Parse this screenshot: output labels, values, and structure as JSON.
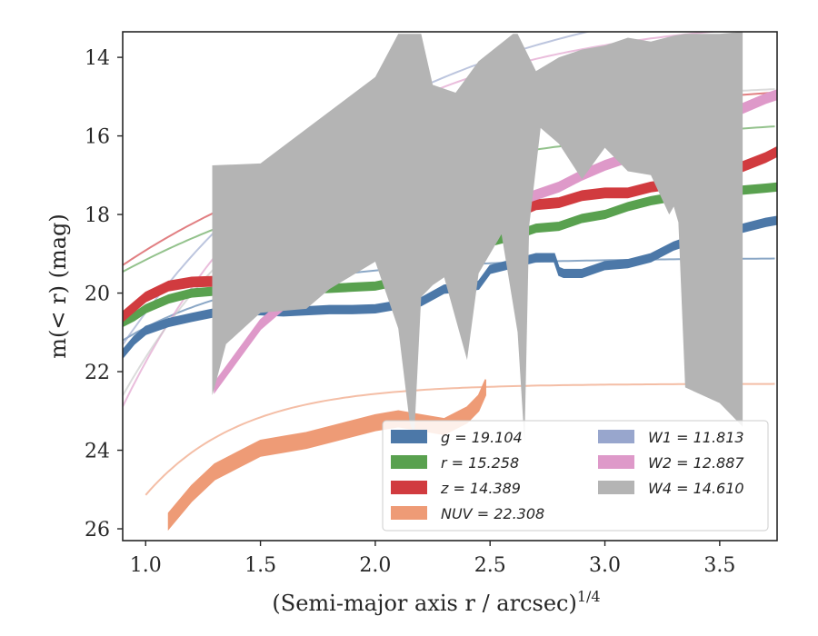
{
  "chart_data": {
    "type": "line",
    "xlabel": "(Semi-major axis r / arcsec)",
    "xlabel_sup": "1/4",
    "ylabel": "m(< r) (mag)",
    "xlim": [
      0.9,
      3.75
    ],
    "ylim": [
      26.3,
      13.35
    ],
    "y_inverted": true,
    "xticks": [
      1.0,
      1.5,
      2.0,
      2.5,
      3.0,
      3.5
    ],
    "xtick_labels": [
      "1.0",
      "1.5",
      "2.0",
      "2.5",
      "3.0",
      "3.5"
    ],
    "yticks": [
      14,
      16,
      18,
      20,
      22,
      24,
      26
    ],
    "ytick_labels": [
      "14",
      "16",
      "18",
      "20",
      "22",
      "24",
      "26"
    ],
    "legend_position": "lower-right",
    "legend_columns": 2,
    "series": [
      {
        "name": "g = 19.104",
        "color": "#4c78a8",
        "kind": "band",
        "x": [
          0.9,
          0.95,
          1.0,
          1.1,
          1.2,
          1.3,
          1.4,
          1.5,
          1.6,
          1.7,
          1.8,
          1.9,
          2.0,
          2.1,
          2.2,
          2.3,
          2.4,
          2.45,
          2.5,
          2.6,
          2.7,
          2.78,
          2.8,
          2.82,
          2.9,
          3.0,
          3.1,
          3.2,
          3.3,
          3.4,
          3.5,
          3.6,
          3.7,
          3.75
        ],
        "y": [
          21.55,
          21.2,
          20.95,
          20.75,
          20.62,
          20.5,
          20.45,
          20.45,
          20.48,
          20.45,
          20.42,
          20.42,
          20.4,
          20.3,
          20.22,
          19.9,
          19.85,
          19.8,
          19.4,
          19.25,
          19.1,
          19.1,
          19.45,
          19.5,
          19.5,
          19.3,
          19.25,
          19.1,
          18.8,
          18.6,
          18.5,
          18.35,
          18.2,
          18.15
        ],
        "band_half_width": 0.1
      },
      {
        "name": "r = 15.258",
        "color": "#59a14f",
        "kind": "band",
        "x": [
          0.9,
          0.95,
          1.0,
          1.1,
          1.2,
          1.3,
          1.4,
          1.5,
          1.6,
          1.7,
          1.8,
          1.9,
          2.0,
          2.1,
          2.2,
          2.3,
          2.4,
          2.45,
          2.5,
          2.6,
          2.7,
          2.8,
          2.9,
          3.0,
          3.1,
          3.2,
          3.3,
          3.4,
          3.5,
          3.6,
          3.7,
          3.75
        ],
        "y": [
          20.75,
          20.6,
          20.4,
          20.15,
          20.0,
          19.95,
          19.95,
          19.95,
          19.95,
          19.9,
          19.88,
          19.85,
          19.82,
          19.7,
          19.55,
          19.2,
          19.05,
          18.95,
          18.7,
          18.55,
          18.35,
          18.3,
          18.1,
          18.0,
          17.8,
          17.65,
          17.55,
          17.45,
          17.42,
          17.38,
          17.33,
          17.3
        ],
        "band_half_width": 0.1
      },
      {
        "name": "z = 14.389",
        "color": "#d13b3f",
        "kind": "band",
        "x": [
          0.9,
          0.95,
          1.0,
          1.1,
          1.2,
          1.3,
          1.4,
          1.5,
          1.6,
          1.7,
          1.8,
          1.9,
          2.0,
          2.1,
          2.2,
          2.3,
          2.4,
          2.5,
          2.6,
          2.7,
          2.8,
          2.9,
          3.0,
          3.1,
          3.2,
          3.3,
          3.4,
          3.5,
          3.6,
          3.7,
          3.75
        ],
        "y": [
          20.6,
          20.35,
          20.1,
          19.82,
          19.72,
          19.7,
          19.6,
          19.55,
          19.58,
          19.55,
          19.45,
          19.3,
          19.05,
          18.75,
          18.55,
          18.2,
          18.1,
          18.0,
          18.0,
          17.75,
          17.7,
          17.52,
          17.45,
          17.45,
          17.3,
          17.22,
          17.0,
          16.98,
          16.78,
          16.55,
          16.4
        ],
        "band_half_width": 0.12
      },
      {
        "name": "NUV = 22.308",
        "color": "#ee9b76",
        "kind": "band",
        "x": [
          1.1,
          1.2,
          1.3,
          1.4,
          1.5,
          1.6,
          1.7,
          1.8,
          1.9,
          2.0,
          2.1,
          2.2,
          2.3,
          2.4,
          2.45,
          2.48
        ],
        "y": [
          25.8,
          25.1,
          24.55,
          24.25,
          23.95,
          23.85,
          23.75,
          23.6,
          23.45,
          23.3,
          23.2,
          23.3,
          23.4,
          23.1,
          22.8,
          22.4
        ],
        "band_half_width": 0.2
      },
      {
        "name": "W1 = 11.813",
        "color": "#98a6cd",
        "kind": "band",
        "x": [
          1.4,
          1.5,
          1.6,
          1.7,
          1.8,
          1.9,
          2.0,
          2.1,
          2.2,
          2.3,
          2.4,
          2.5
        ],
        "y": [
          20.4,
          20.1,
          19.8,
          19.4,
          19.0,
          18.75,
          18.5,
          18.3,
          18.15,
          18.0,
          17.9,
          17.85
        ],
        "band_half_width": 0.05
      },
      {
        "name": "W2 = 12.887",
        "color": "#de99c9",
        "kind": "band",
        "x": [
          1.3,
          1.4,
          1.5,
          1.6,
          1.7,
          1.8,
          1.9,
          2.0,
          2.1,
          2.2,
          2.3,
          2.4,
          2.5,
          2.6,
          2.7,
          2.8,
          2.9,
          3.0,
          3.1,
          3.2,
          3.3,
          3.4,
          3.5,
          3.6,
          3.7,
          3.75
        ],
        "y": [
          22.4,
          21.6,
          20.8,
          20.3,
          20.0,
          19.6,
          19.3,
          19.0,
          18.7,
          18.4,
          18.2,
          18.0,
          17.85,
          17.7,
          17.5,
          17.3,
          17.0,
          16.75,
          16.55,
          16.35,
          16.1,
          15.9,
          15.55,
          15.3,
          15.05,
          14.95
        ],
        "band_half_width": 0.12
      },
      {
        "name": "W4 = 14.610",
        "color": "#b4b4b4",
        "kind": "polygon",
        "x_upper": [
          1.29,
          1.5,
          2.0,
          2.1,
          2.2,
          2.25,
          2.35,
          2.45,
          2.6,
          2.62,
          2.7,
          2.8,
          2.9,
          3.0,
          3.1,
          3.2,
          3.3,
          3.35,
          3.5,
          3.6
        ],
        "y_upper": [
          16.75,
          16.7,
          14.5,
          13.4,
          13.4,
          14.7,
          14.9,
          14.1,
          13.4,
          13.4,
          14.35,
          14.0,
          13.8,
          13.7,
          13.5,
          13.6,
          13.45,
          13.4,
          13.4,
          13.35
        ],
        "x_lower": [
          3.6,
          3.5,
          3.35,
          3.32,
          3.3,
          3.28,
          3.2,
          3.1,
          3.0,
          2.9,
          2.8,
          2.72,
          2.67,
          2.65,
          2.62,
          2.55,
          2.45,
          2.4,
          2.3,
          2.25,
          2.2,
          2.17,
          2.15,
          2.1,
          2.0,
          1.8,
          1.7,
          1.5,
          1.35,
          1.3,
          1.29
        ],
        "y_lower": [
          23.4,
          22.8,
          22.4,
          18.2,
          17.8,
          18.0,
          17.0,
          16.9,
          16.3,
          17.1,
          16.2,
          15.8,
          18.3,
          23.8,
          21.0,
          18.5,
          19.5,
          21.7,
          19.6,
          19.8,
          20.1,
          23.6,
          23.3,
          20.9,
          19.2,
          19.9,
          20.4,
          20.5,
          21.3,
          22.4,
          22.6
        ]
      }
    ],
    "model_curves": [
      {
        "band": "g",
        "color": "#4c78a8",
        "asymptote": 19.104
      },
      {
        "band": "r",
        "color": "#59a14f",
        "asymptote": 15.258
      },
      {
        "band": "z",
        "color": "#d13b3f",
        "asymptote": 14.389
      },
      {
        "band": "NUV",
        "color": "#ee9b76",
        "asymptote": 22.308
      },
      {
        "band": "W1",
        "color": "#98a6cd",
        "asymptote": 11.813
      },
      {
        "band": "W2",
        "color": "#de99c9",
        "asymptote": 12.887
      },
      {
        "band": "W4",
        "color": "#c8c8c8",
        "asymptote": 14.61
      }
    ],
    "legend": [
      {
        "label": "g = 19.104",
        "color": "#4c78a8"
      },
      {
        "label": "r = 15.258",
        "color": "#59a14f"
      },
      {
        "label": "z = 14.389",
        "color": "#d13b3f"
      },
      {
        "label": "NUV = 22.308",
        "color": "#ee9b76"
      },
      {
        "label": "W1 = 11.813",
        "color": "#98a6cd"
      },
      {
        "label": "W2 = 12.887",
        "color": "#de99c9"
      },
      {
        "label": "W4 = 14.610",
        "color": "#b4b4b4"
      }
    ]
  }
}
